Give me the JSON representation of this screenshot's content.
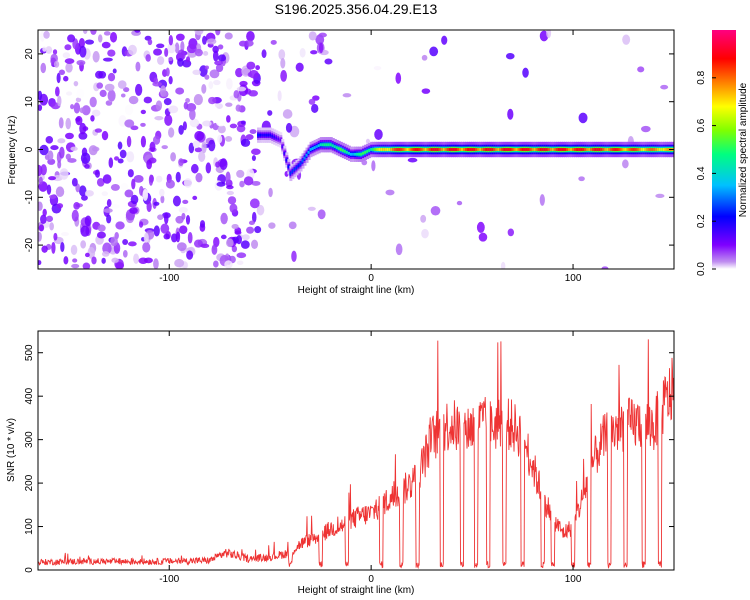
{
  "title": "S196.2025.356.04.29.E13",
  "chart_data": [
    {
      "type": "heatmap",
      "xlabel": "Height of straight line (km)",
      "ylabel": "Frequency (Hz)",
      "xlim": [
        -165,
        150
      ],
      "ylim": [
        -25,
        25
      ],
      "xticks": [
        -100,
        0,
        100
      ],
      "yticks": [
        -20,
        -10,
        0,
        10,
        20
      ],
      "colorbar": {
        "label": "Normalized spectral amplitude",
        "range": [
          0,
          1
        ],
        "ticks": [
          "0.0",
          "0.2",
          "0.4",
          "0.6",
          "0.8"
        ],
        "colors": [
          "#ffffff",
          "#c08ff0",
          "#7f00ff",
          "#0000ff",
          "#00c0ff",
          "#00ff80",
          "#80ff00",
          "#ffff00",
          "#ff8000",
          "#ff0000",
          "#ff0080"
        ]
      },
      "ridge": {
        "x": [
          -56,
          -50,
          -45,
          -40,
          -35,
          -30,
          -25,
          -20,
          -15,
          -10,
          -5,
          0,
          10,
          30,
          50,
          70,
          90,
          110,
          130,
          150
        ],
        "freq": [
          3,
          3,
          2,
          -5,
          -3,
          0,
          1,
          1,
          0,
          -1,
          -1,
          0,
          0,
          0,
          0,
          0,
          0,
          0,
          0,
          0
        ],
        "amplitude": [
          0.25,
          0.2,
          0.15,
          0.25,
          0.3,
          0.35,
          0.45,
          0.5,
          0.55,
          0.4,
          0.5,
          0.55,
          0.85,
          0.9,
          0.9,
          0.9,
          0.9,
          0.9,
          0.85,
          0.75
        ]
      }
    },
    {
      "type": "line",
      "xlabel": "Height of straight line (km)",
      "ylabel": "SNR (10 * v/v)",
      "xlim": [
        -165,
        150
      ],
      "ylim": [
        0,
        550
      ],
      "xticks": [
        -100,
        0,
        100
      ],
      "yticks": [
        0,
        100,
        200,
        300,
        400,
        500
      ],
      "color": "#ee3333",
      "series": [
        {
          "x": [
            -165,
            -140,
            -120,
            -100,
            -80,
            -72,
            -60,
            -50,
            -40,
            -35,
            -30,
            -25,
            -20,
            -15,
            -10,
            -5,
            0,
            5,
            10,
            15,
            20,
            25,
            30,
            35,
            40,
            45,
            50,
            55,
            60,
            65,
            70,
            75,
            80,
            85,
            90,
            95,
            100,
            105,
            110,
            115,
            120,
            125,
            130,
            135,
            140,
            145,
            150
          ],
          "y": [
            18,
            20,
            19,
            20,
            22,
            40,
            25,
            30,
            40,
            60,
            70,
            80,
            95,
            100,
            115,
            125,
            130,
            150,
            165,
            180,
            200,
            240,
            300,
            330,
            335,
            320,
            330,
            340,
            330,
            345,
            330,
            310,
            240,
            170,
            120,
            85,
            100,
            170,
            250,
            300,
            320,
            335,
            335,
            340,
            330,
            380,
            420
          ],
          "dips": [
            -40,
            -25,
            -12,
            5,
            15,
            23,
            35,
            45,
            52,
            58,
            66,
            75,
            85,
            90,
            100,
            108,
            118,
            126,
            135,
            143
          ]
        }
      ]
    }
  ]
}
